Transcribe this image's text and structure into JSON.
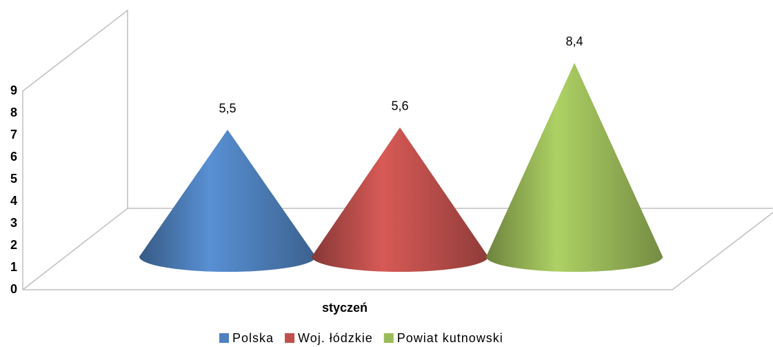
{
  "chart_data": {
    "type": "cone",
    "categories": [
      "styczeń"
    ],
    "series": [
      {
        "name": "Polska",
        "color": "#4f81bd",
        "values": [
          5.5
        ],
        "value_labels": [
          "5,5"
        ]
      },
      {
        "name": "Woj. łódzkie",
        "color": "#c0504d",
        "values": [
          5.6
        ],
        "value_labels": [
          "5,6"
        ]
      },
      {
        "name": "Powiat kutnowski",
        "color": "#9bbb59",
        "values": [
          8.4
        ],
        "value_labels": [
          "8,4"
        ]
      }
    ],
    "ylim": [
      0,
      9
    ],
    "yticks": [
      0,
      1,
      2,
      3,
      4,
      5,
      6,
      7,
      8,
      9
    ],
    "legend": "bottom"
  }
}
